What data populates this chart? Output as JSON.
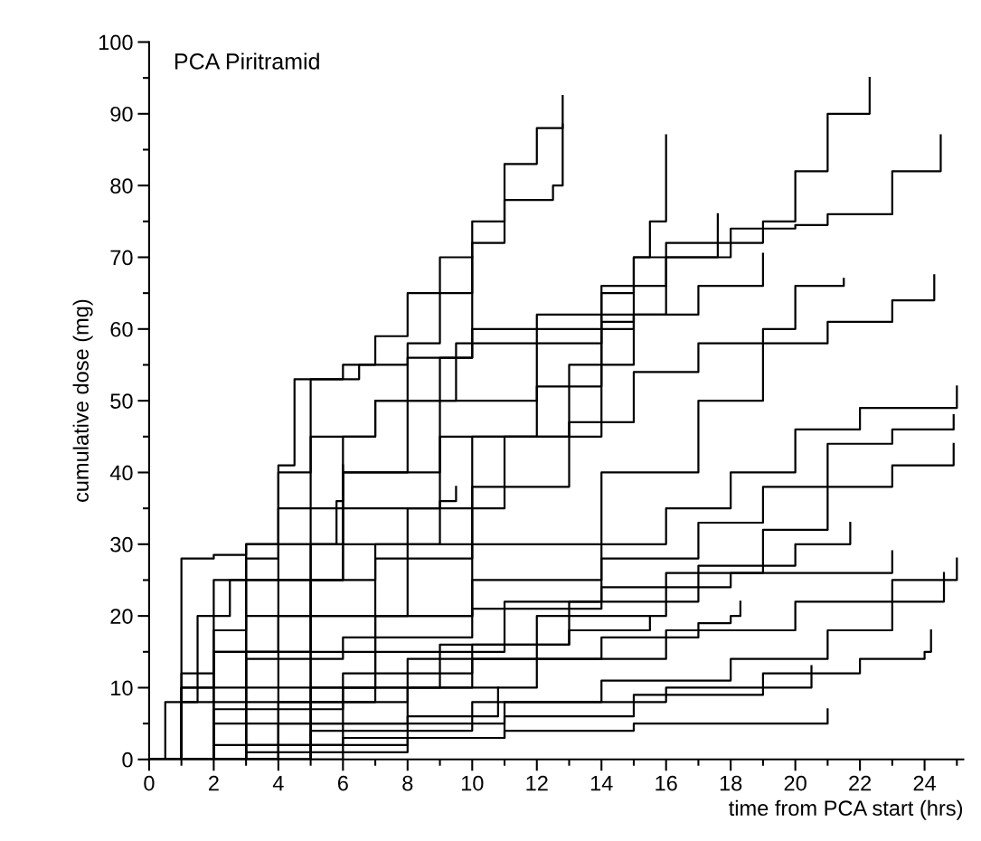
{
  "chart_data": {
    "type": "step",
    "title": "PCA Piritramid",
    "xlabel": "time from PCA start (hrs)",
    "ylabel": "cumulative dose (mg)",
    "xlim": [
      0,
      25.2
    ],
    "ylim": [
      0,
      100
    ],
    "xticks": [
      0,
      {
        "value": 1,
        "label": null
      },
      2,
      {
        "value": 3,
        "label": null
      },
      4,
      {
        "value": 5,
        "label": null
      },
      6,
      {
        "value": 7,
        "label": null
      },
      8,
      {
        "value": 9,
        "label": null
      },
      10,
      {
        "value": 11,
        "label": null
      },
      12,
      {
        "value": 13,
        "label": null
      },
      14,
      {
        "value": 15,
        "label": null
      },
      16,
      {
        "value": 17,
        "label": null
      },
      18,
      {
        "value": 19,
        "label": null
      },
      20,
      {
        "value": 21,
        "label": null
      },
      22,
      {
        "value": 23,
        "label": null
      },
      24,
      {
        "value": 25,
        "label": null
      }
    ],
    "yticks": [
      0,
      {
        "value": 5,
        "label": null
      },
      10,
      {
        "value": 15,
        "label": null
      },
      20,
      {
        "value": 25,
        "label": null
      },
      30,
      {
        "value": 35,
        "label": null
      },
      40,
      {
        "value": 45,
        "label": null
      },
      50,
      {
        "value": 55,
        "label": null
      },
      60,
      {
        "value": 65,
        "label": null
      },
      70,
      {
        "value": 75,
        "label": null
      },
      80,
      {
        "value": 85,
        "label": null
      },
      90,
      {
        "value": 95,
        "label": null
      },
      100
    ],
    "grid": false,
    "legend": false,
    "series": [
      {
        "color": "#000000",
        "x": [
          0,
          0.5,
          1.5,
          2.5,
          3,
          4,
          5,
          6.5,
          7,
          8,
          9,
          10,
          11,
          12,
          12.8
        ],
        "values": [
          0,
          8,
          20,
          25,
          30,
          40,
          53,
          55,
          59,
          65,
          70,
          75,
          83,
          88,
          92.5
        ]
      },
      {
        "color": "#000000",
        "x": [
          0,
          1,
          2,
          3,
          4,
          6,
          7,
          8,
          9,
          10,
          11,
          12.5,
          12.8
        ],
        "values": [
          0,
          10,
          18,
          28,
          35,
          45,
          50,
          58,
          65,
          72,
          78,
          80,
          88.5
        ]
      },
      {
        "color": "#000000",
        "x": [
          0,
          1,
          2,
          3,
          5,
          7,
          9,
          10,
          12,
          14,
          15,
          15.5,
          16
        ],
        "values": [
          0,
          12,
          25,
          30,
          45,
          50,
          56,
          60,
          62,
          65,
          70,
          75,
          87
        ]
      },
      {
        "color": "#000000",
        "x": [
          0,
          3,
          6,
          9,
          12,
          14,
          16,
          18,
          19,
          20,
          21,
          22.3
        ],
        "values": [
          0,
          25,
          40,
          50,
          58,
          66,
          70,
          72,
          75,
          82,
          90,
          95
        ]
      },
      {
        "color": "#000000",
        "x": [
          0,
          5,
          10,
          14,
          16,
          18,
          20,
          21,
          23,
          24.5
        ],
        "values": [
          0,
          30,
          45,
          62,
          72,
          74,
          74.5,
          76,
          82,
          87
        ]
      },
      {
        "color": "#000000",
        "x": [
          0,
          1,
          3,
          6,
          9,
          12,
          14,
          15,
          17.6
        ],
        "values": [
          0,
          10,
          25,
          35,
          45,
          52,
          60,
          70,
          76
        ]
      },
      {
        "color": "#000000",
        "x": [
          0,
          4,
          8,
          11,
          13,
          15,
          17,
          19
        ],
        "values": [
          0,
          20,
          35,
          45,
          55,
          62,
          66,
          70.5
        ]
      },
      {
        "color": "#000000",
        "x": [
          0,
          3,
          7,
          10,
          13,
          15,
          17,
          19,
          20,
          21.5
        ],
        "values": [
          0,
          15,
          28,
          38,
          47,
          54,
          58,
          60,
          66,
          67
        ]
      },
      {
        "color": "#000000",
        "x": [
          0,
          5,
          10,
          14,
          17,
          19,
          21,
          23,
          24.3
        ],
        "values": [
          0,
          20,
          30,
          40,
          50,
          58,
          61,
          64,
          67.5
        ]
      },
      {
        "color": "#000000",
        "x": [
          0,
          1,
          2,
          3,
          4,
          4.5,
          6,
          8,
          10,
          12,
          14,
          15
        ],
        "values": [
          0,
          28,
          28.5,
          30,
          41,
          53,
          55,
          56,
          58,
          60,
          61,
          62
        ]
      },
      {
        "color": "#000000",
        "x": [
          0,
          3,
          7,
          10,
          14,
          16,
          18,
          20,
          22,
          25
        ],
        "values": [
          0,
          10,
          20,
          25,
          30,
          35,
          40,
          46,
          49,
          52
        ]
      },
      {
        "color": "#000000",
        "x": [
          0,
          3,
          7,
          11,
          14,
          17,
          19,
          21,
          23,
          24.9
        ],
        "values": [
          0,
          8,
          15,
          22,
          28,
          33,
          38,
          44,
          46,
          48
        ]
      },
      {
        "color": "#000000",
        "x": [
          0,
          4,
          8,
          12,
          16,
          19,
          21,
          23,
          24.9
        ],
        "values": [
          0,
          8,
          14,
          20,
          26,
          32,
          38,
          41,
          44
        ]
      },
      {
        "color": "#000000",
        "x": [
          0,
          5,
          9,
          13,
          17,
          20,
          21.7
        ],
        "values": [
          0,
          10,
          16,
          22,
          27,
          30,
          33
        ]
      },
      {
        "color": "#000000",
        "x": [
          0,
          3,
          6,
          10,
          14,
          18,
          23
        ],
        "values": [
          0,
          14,
          17,
          21,
          24,
          26,
          29
        ]
      },
      {
        "color": "#000000",
        "x": [
          0,
          4,
          8,
          12,
          16,
          20,
          23,
          25
        ],
        "values": [
          0,
          5,
          10,
          14,
          18,
          22,
          25,
          28
        ]
      },
      {
        "color": "#000000",
        "x": [
          0,
          5,
          10,
          14,
          18,
          21,
          23,
          24.6
        ],
        "values": [
          0,
          4,
          8,
          11,
          14,
          18,
          22,
          26
        ]
      },
      {
        "color": "#000000",
        "x": [
          0,
          6,
          11,
          15,
          19,
          22,
          24,
          24.2
        ],
        "values": [
          0,
          3,
          6,
          9,
          12,
          14,
          15,
          18
        ]
      },
      {
        "color": "#000000",
        "x": [
          0,
          3,
          8,
          11,
          15,
          21
        ],
        "values": [
          0,
          1,
          3,
          4,
          5,
          7
        ]
      },
      {
        "color": "#000000",
        "x": [
          0,
          2,
          6,
          10,
          14,
          17,
          18,
          18.3
        ],
        "values": [
          0,
          5,
          10,
          14,
          17,
          19,
          20,
          22
        ]
      },
      {
        "color": "#000000",
        "x": [
          0,
          2,
          6,
          11,
          16,
          20.5
        ],
        "values": [
          0,
          2,
          5,
          8,
          10,
          13
        ]
      },
      {
        "color": "#000000",
        "x": [
          0,
          2,
          6,
          10,
          13,
          15.5
        ],
        "values": [
          0,
          7,
          12,
          16,
          18,
          20
        ]
      },
      {
        "color": "#000000",
        "x": [
          0,
          2,
          5,
          7,
          9,
          9.5
        ],
        "values": [
          0,
          15,
          25,
          30,
          36,
          38
        ]
      },
      {
        "color": "#000000",
        "x": [
          0,
          1,
          3,
          5,
          5.8,
          6
        ],
        "values": [
          0,
          8,
          20,
          30,
          36,
          41
        ]
      },
      {
        "color": "#000000",
        "x": [
          0,
          3,
          8,
          10.8
        ],
        "values": [
          0,
          2,
          6,
          10
        ]
      },
      {
        "color": "#000000",
        "x": [
          0,
          2,
          4,
          6,
          8,
          9.5,
          10
        ],
        "values": [
          0,
          15,
          30,
          40,
          50,
          58,
          70
        ]
      }
    ]
  }
}
